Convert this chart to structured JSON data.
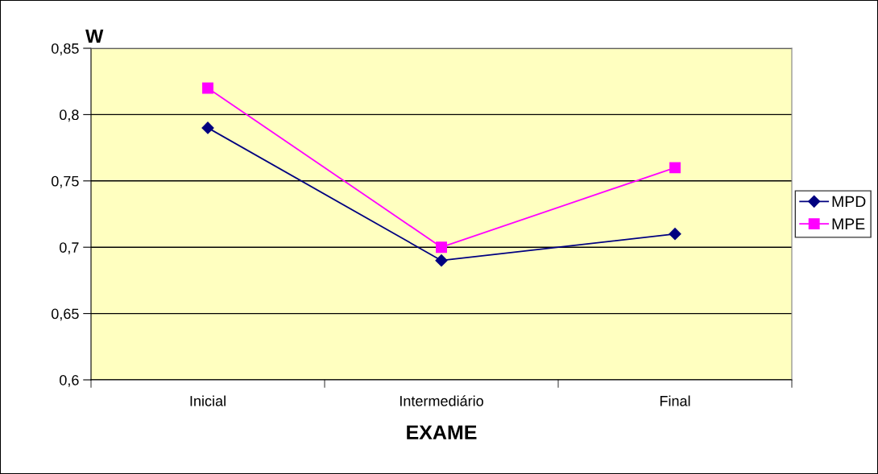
{
  "chart_data": {
    "type": "line",
    "ylabel": "W",
    "xlabel": "EXAME",
    "categories": [
      "Inicial",
      "Intermediário",
      "Final"
    ],
    "series": [
      {
        "name": "MPD",
        "color": "#000080",
        "marker": "diamond",
        "values": [
          0.79,
          0.69,
          0.71
        ]
      },
      {
        "name": "MPE",
        "color": "#ff00ff",
        "marker": "square",
        "values": [
          0.82,
          0.7,
          0.76
        ]
      }
    ],
    "ylim": [
      0.6,
      0.85
    ],
    "yticks": [
      {
        "value": 0.6,
        "label": "0,6"
      },
      {
        "value": 0.65,
        "label": "0,65"
      },
      {
        "value": 0.7,
        "label": "0,7"
      },
      {
        "value": 0.75,
        "label": "0,75"
      },
      {
        "value": 0.8,
        "label": "0,8"
      },
      {
        "value": 0.85,
        "label": "0,85"
      }
    ],
    "grid": "y",
    "legend": "right",
    "line_style": "solid"
  }
}
